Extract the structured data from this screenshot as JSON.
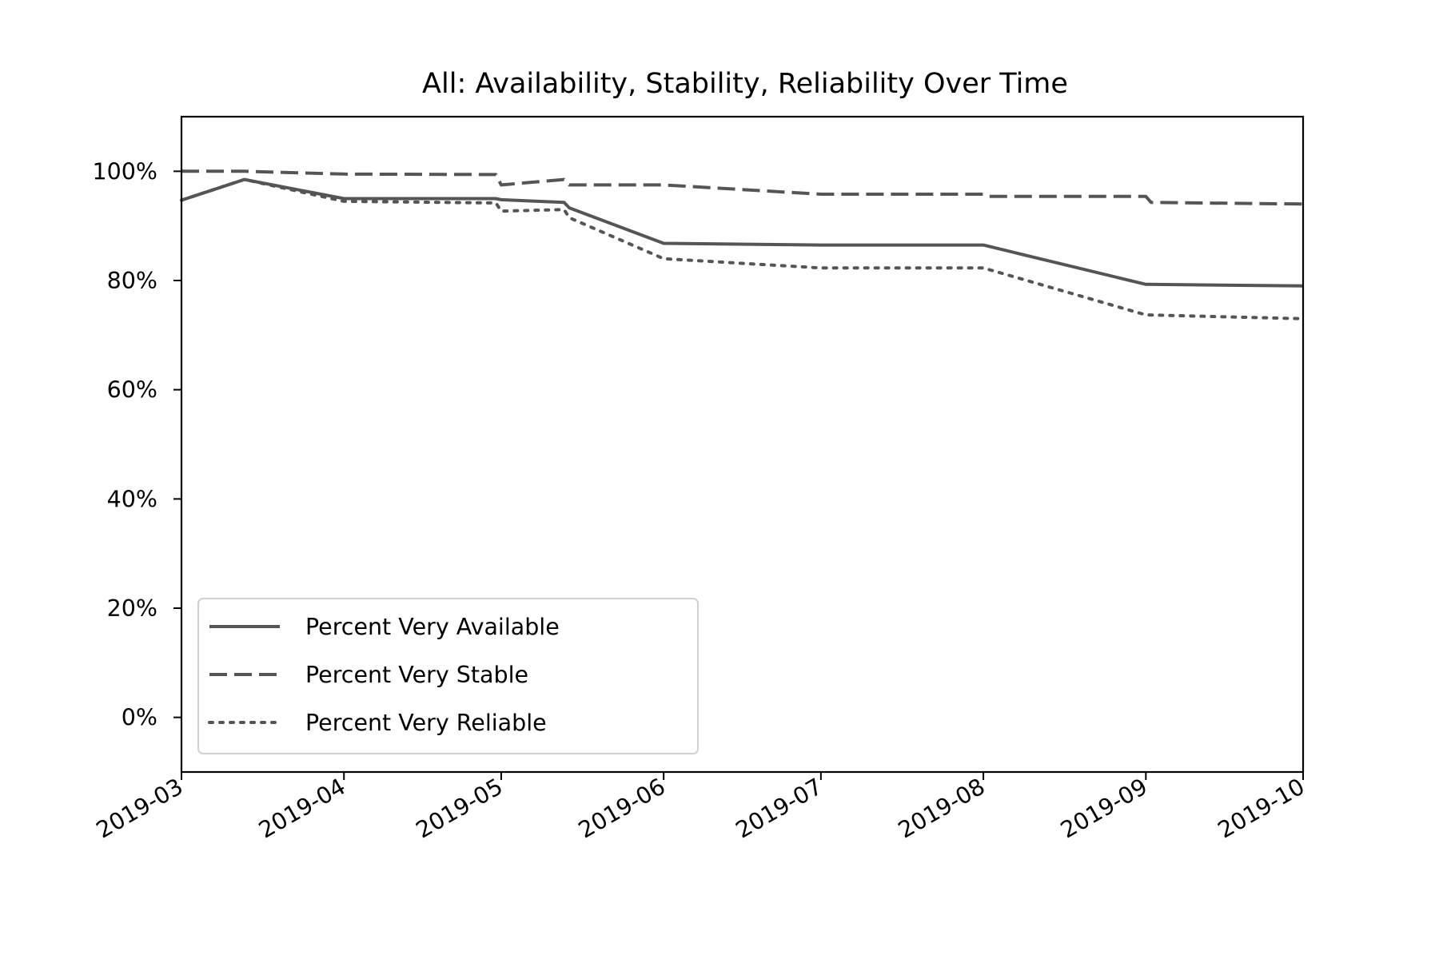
{
  "chart_data": {
    "type": "line",
    "title": "All: Availability, Stability, Reliability Over Time",
    "xlabel": "",
    "ylabel": "",
    "x_axis": {
      "type": "date",
      "range": [
        "2019-03-01",
        "2019-10-01"
      ],
      "tick_labels": [
        "2019-03",
        "2019-04",
        "2019-05",
        "2019-06",
        "2019-07",
        "2019-08",
        "2019-09",
        "2019-10"
      ],
      "tick_dates": [
        "2019-03-01",
        "2019-04-01",
        "2019-05-01",
        "2019-06-01",
        "2019-07-01",
        "2019-08-01",
        "2019-09-01",
        "2019-10-01"
      ],
      "tick_label_rotation": "30 degrees"
    },
    "y_axis": {
      "range": [
        -10,
        110
      ],
      "format": "percent",
      "tick_values": [
        0,
        20,
        40,
        60,
        80,
        100
      ],
      "tick_labels": [
        "0%",
        "20%",
        "40%",
        "60%",
        "80%",
        "100%"
      ]
    },
    "grid": false,
    "legend": {
      "placement": "lower-left"
    },
    "series": [
      {
        "name": "Percent Very Available",
        "line_style": "solid",
        "color": "#555555",
        "points": [
          {
            "x": "2019-03-01",
            "y": 94.7
          },
          {
            "x": "2019-03-13",
            "y": 98.5
          },
          {
            "x": "2019-04-01",
            "y": 95.0
          },
          {
            "x": "2019-04-30",
            "y": 95.0
          },
          {
            "x": "2019-05-01",
            "y": 94.8
          },
          {
            "x": "2019-05-13",
            "y": 94.3
          },
          {
            "x": "2019-05-14",
            "y": 93.3
          },
          {
            "x": "2019-06-01",
            "y": 86.8
          },
          {
            "x": "2019-07-01",
            "y": 86.5
          },
          {
            "x": "2019-08-01",
            "y": 86.5
          },
          {
            "x": "2019-09-01",
            "y": 79.3
          },
          {
            "x": "2019-10-01",
            "y": 79.0
          }
        ]
      },
      {
        "name": "Percent Very Stable",
        "line_style": "dashed",
        "color": "#555555",
        "points": [
          {
            "x": "2019-03-01",
            "y": 100.0
          },
          {
            "x": "2019-03-13",
            "y": 100.0
          },
          {
            "x": "2019-04-01",
            "y": 99.5
          },
          {
            "x": "2019-04-30",
            "y": 99.4
          },
          {
            "x": "2019-05-01",
            "y": 97.5
          },
          {
            "x": "2019-05-13",
            "y": 98.5
          },
          {
            "x": "2019-05-14",
            "y": 97.5
          },
          {
            "x": "2019-06-01",
            "y": 97.5
          },
          {
            "x": "2019-07-01",
            "y": 95.8
          },
          {
            "x": "2019-08-01",
            "y": 95.8
          },
          {
            "x": "2019-08-02",
            "y": 95.4
          },
          {
            "x": "2019-09-01",
            "y": 95.4
          },
          {
            "x": "2019-09-02",
            "y": 94.3
          },
          {
            "x": "2019-10-01",
            "y": 94.0
          }
        ]
      },
      {
        "name": "Percent Very Reliable",
        "line_style": "dotted",
        "color": "#555555",
        "points": [
          {
            "x": "2019-03-01",
            "y": 94.7
          },
          {
            "x": "2019-03-13",
            "y": 98.5
          },
          {
            "x": "2019-04-01",
            "y": 94.5
          },
          {
            "x": "2019-04-30",
            "y": 94.2
          },
          {
            "x": "2019-05-01",
            "y": 92.7
          },
          {
            "x": "2019-05-13",
            "y": 93.0
          },
          {
            "x": "2019-05-14",
            "y": 91.5
          },
          {
            "x": "2019-06-01",
            "y": 84.0
          },
          {
            "x": "2019-07-01",
            "y": 82.3
          },
          {
            "x": "2019-08-01",
            "y": 82.3
          },
          {
            "x": "2019-09-01",
            "y": 73.7
          },
          {
            "x": "2019-10-01",
            "y": 73.0
          }
        ]
      }
    ]
  }
}
